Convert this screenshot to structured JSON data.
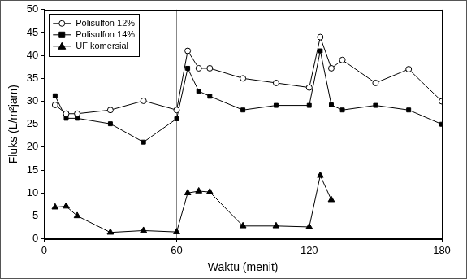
{
  "chart_data": {
    "type": "line",
    "x_label": "Waktu (menit)",
    "y_label": "Fluks (L/m²jam)",
    "x": [
      5,
      10,
      15,
      30,
      45,
      60,
      65,
      70,
      75,
      90,
      105,
      120,
      125,
      130,
      135,
      150,
      165,
      180
    ],
    "series": [
      {
        "name": "Polisulfon 12%",
        "color": "#000000",
        "marker": "circle_open",
        "values": [
          29.2,
          27.3,
          27.3,
          28.1,
          30.1,
          28.1,
          41,
          37.2,
          37.2,
          35,
          34,
          33,
          44,
          37.2,
          39,
          34,
          37,
          30
        ]
      },
      {
        "name": "Polisulfon 14%",
        "color": "#000000",
        "marker": "square",
        "values": [
          31.2,
          26.3,
          26.3,
          25.1,
          21.1,
          26.2,
          37.2,
          32.2,
          31.1,
          28.1,
          29.1,
          29.1,
          41,
          29.2,
          28.1,
          29.1,
          28.1,
          25
        ]
      },
      {
        "name": "UF komersial",
        "color": "#000000",
        "marker": "triangle",
        "values": [
          6.9,
          7.1,
          5,
          1.4,
          1.8,
          1.5,
          10,
          10.4,
          10.2,
          2.8,
          2.8,
          2.6,
          13.8,
          8.5,
          null,
          null,
          null,
          null
        ]
      }
    ],
    "xlim": [
      0,
      180
    ],
    "xticks": [
      0,
      60,
      120,
      180
    ],
    "ylim": [
      0,
      50
    ],
    "yticks": [
      0,
      5,
      10,
      15,
      20,
      25,
      30,
      35,
      40,
      45,
      50
    ],
    "grid": "x",
    "legend": "upper left"
  }
}
